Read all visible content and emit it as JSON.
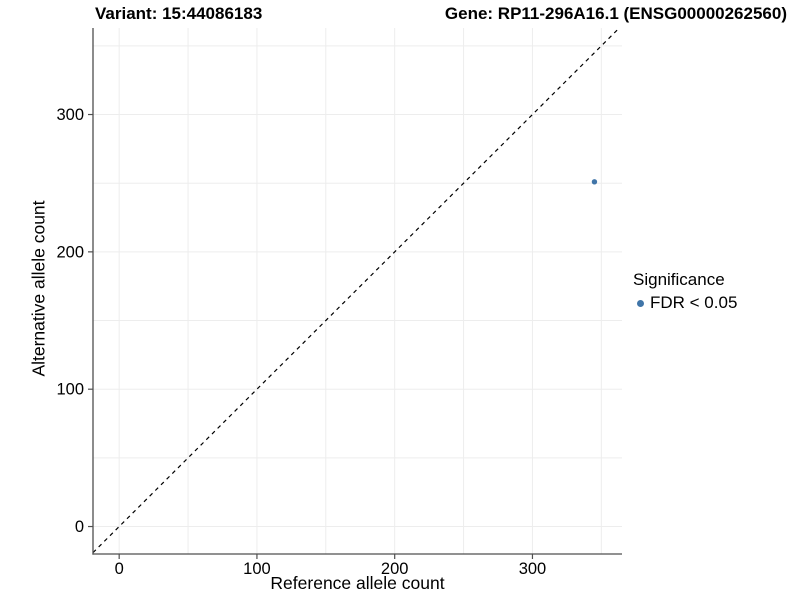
{
  "header": {
    "title_left": "Variant: 15:44086183",
    "title_right": "Gene: RP11-296A16.1 (ENSG00000262560)"
  },
  "chart_data": {
    "type": "scatter",
    "xlabel": "Reference allele count",
    "ylabel": "Alternative allele count",
    "xlim": [
      -19,
      365
    ],
    "ylim": [
      -20,
      363
    ],
    "x_ticks": [
      0,
      100,
      200,
      300
    ],
    "y_ticks": [
      0,
      100,
      200,
      300
    ],
    "grid_interval": 50,
    "grid_max": 350,
    "grid": true,
    "identity_line": {
      "style": "dashed",
      "equation": "y = x",
      "color": "#000000"
    },
    "series": [
      {
        "name": "FDR < 0.05",
        "color": "#4075a8",
        "points": [
          [
            345,
            251
          ]
        ],
        "point_radius": 2.7
      }
    ],
    "legend": {
      "title": "Significance",
      "position": "right",
      "items": [
        {
          "label": "FDR < 0.05",
          "color": "#4075a8"
        }
      ]
    },
    "colors": {
      "axis": "#4f4f4f",
      "grid": "#ededed",
      "tick_text": "#000000",
      "background": "#ffffff"
    }
  }
}
